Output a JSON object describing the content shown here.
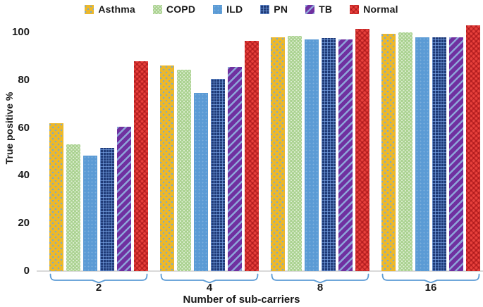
{
  "chart_data": {
    "type": "bar",
    "title": "",
    "xlabel": "Number of sub-carriers",
    "ylabel": "True positive %",
    "categories": [
      "2",
      "4",
      "8",
      "16"
    ],
    "series": [
      {
        "name": "Asthma",
        "color": "#EDB829",
        "pattern": "gold-dots",
        "values": [
          62,
          86,
          98,
          99.5
        ]
      },
      {
        "name": "COPD",
        "color": "#A9D18E",
        "pattern": "green-dots",
        "values": [
          53,
          84.5,
          98.5,
          100
        ]
      },
      {
        "name": "ILD",
        "color": "#5B9BD5",
        "pattern": "blue-solid",
        "values": [
          48.5,
          74.5,
          97,
          98
        ]
      },
      {
        "name": "PN",
        "color": "#1F3A77",
        "pattern": "navy-grid",
        "values": [
          51.5,
          80.5,
          97.5,
          98
        ]
      },
      {
        "name": "TB",
        "color": "#7030A0",
        "pattern": "purple-stripes",
        "values": [
          60.5,
          85.5,
          97,
          98
        ]
      },
      {
        "name": "Normal",
        "color": "#E8413C",
        "pattern": "red-zigzag",
        "values": [
          88,
          96.5,
          101.5,
          103
        ]
      }
    ],
    "yticks": [
      0,
      20,
      40,
      60,
      80,
      100
    ],
    "ylim": [
      0,
      105
    ],
    "legend_position": "top",
    "grid": false,
    "axis_line_color": "#D9D9D9",
    "bracket_color": "#5B9BD5",
    "text_color": "#1a1a1a"
  }
}
